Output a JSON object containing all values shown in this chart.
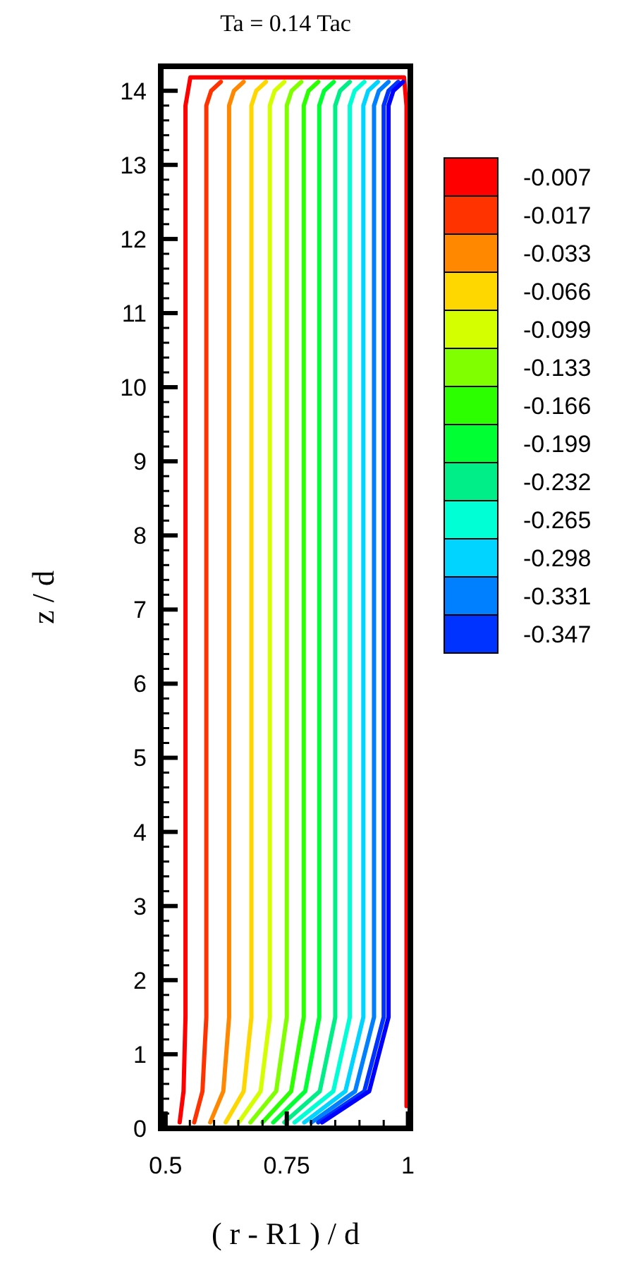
{
  "chart_data": {
    "type": "line",
    "title": "Ta = 0.14 Tac",
    "xlabel": "( r - R1 ) / d",
    "ylabel": "z / d",
    "xlim": [
      0.49,
      1.005
    ],
    "ylim": [
      0,
      14.33
    ],
    "xticks": [
      0.5,
      0.75,
      1
    ],
    "yticks": [
      0,
      1,
      2,
      3,
      4,
      5,
      6,
      7,
      8,
      9,
      10,
      11,
      12,
      13,
      14
    ],
    "legend": "right",
    "grid": false,
    "line_style": "solid",
    "series": [
      {
        "name": "-0.007",
        "color": "#ff0000",
        "x": [
          0.529,
          0.537,
          0.541,
          0.541,
          0.551,
          0.992,
          0.997,
          0.997
        ],
        "values": [
          0.08,
          0.5,
          1.5,
          13.8,
          14.18,
          14.18,
          13.8,
          0.3
        ]
      },
      {
        "name": "-0.017",
        "color": "#ff3300",
        "x": [
          0.559,
          0.576,
          0.584,
          0.584,
          0.594,
          0.614
        ],
        "values": [
          0.08,
          0.5,
          1.5,
          13.8,
          14.0,
          14.12
        ]
      },
      {
        "name": "-0.033",
        "color": "#ff8800",
        "x": [
          0.592,
          0.619,
          0.631,
          0.631,
          0.641,
          0.661
        ],
        "values": [
          0.08,
          0.5,
          1.5,
          13.8,
          14.0,
          14.12
        ]
      },
      {
        "name": "-0.066",
        "color": "#ffd700",
        "x": [
          0.624,
          0.661,
          0.677,
          0.677,
          0.687,
          0.707
        ],
        "values": [
          0.08,
          0.5,
          1.5,
          13.8,
          14.0,
          14.12
        ]
      },
      {
        "name": "-0.099",
        "color": "#d4ff00",
        "x": [
          0.651,
          0.696,
          0.715,
          0.715,
          0.725,
          0.745
        ],
        "values": [
          0.08,
          0.5,
          1.5,
          13.8,
          14.0,
          14.12
        ]
      },
      {
        "name": "-0.133",
        "color": "#80ff00",
        "x": [
          0.675,
          0.728,
          0.75,
          0.75,
          0.76,
          0.78
        ],
        "values": [
          0.08,
          0.5,
          1.5,
          13.8,
          14.0,
          14.12
        ]
      },
      {
        "name": "-0.166",
        "color": "#2bff00",
        "x": [
          0.7,
          0.759,
          0.785,
          0.785,
          0.795,
          0.815
        ],
        "values": [
          0.08,
          0.5,
          1.5,
          13.8,
          14.0,
          14.12
        ]
      },
      {
        "name": "-0.199",
        "color": "#00ff33",
        "x": [
          0.722,
          0.788,
          0.817,
          0.817,
          0.827,
          0.847
        ],
        "values": [
          0.08,
          0.5,
          1.5,
          13.8,
          14.0,
          14.12
        ]
      },
      {
        "name": "-0.232",
        "color": "#00ee88",
        "x": [
          0.745,
          0.818,
          0.85,
          0.85,
          0.86,
          0.88
        ],
        "values": [
          0.08,
          0.5,
          1.5,
          13.8,
          14.0,
          14.12
        ]
      },
      {
        "name": "-0.265",
        "color": "#00ffd5",
        "x": [
          0.766,
          0.846,
          0.88,
          0.88,
          0.89,
          0.91
        ],
        "values": [
          0.08,
          0.5,
          1.5,
          13.8,
          14.0,
          14.12
        ]
      },
      {
        "name": "-0.298",
        "color": "#00d4ff",
        "x": [
          0.786,
          0.871,
          0.908,
          0.908,
          0.918,
          0.938
        ],
        "values": [
          0.08,
          0.5,
          1.5,
          13.8,
          14.0,
          14.12
        ]
      },
      {
        "name": "-0.331",
        "color": "#0080ff",
        "x": [
          0.801,
          0.891,
          0.93,
          0.93,
          0.94,
          0.96
        ],
        "values": [
          0.08,
          0.5,
          1.5,
          13.8,
          14.0,
          14.12
        ]
      },
      {
        "name": "-0.347",
        "color": "#0033ff",
        "x": [
          0.815,
          0.91,
          0.95,
          0.95,
          0.96,
          0.98
        ],
        "values": [
          0.08,
          0.5,
          1.5,
          13.8,
          14.0,
          14.12
        ]
      },
      {
        "color": "#0000ff",
        "x": [
          0.823,
          0.92,
          0.96,
          0.96,
          0.97,
          0.99
        ],
        "values": [
          0.08,
          0.5,
          1.5,
          13.8,
          14.0,
          14.12
        ]
      }
    ]
  }
}
